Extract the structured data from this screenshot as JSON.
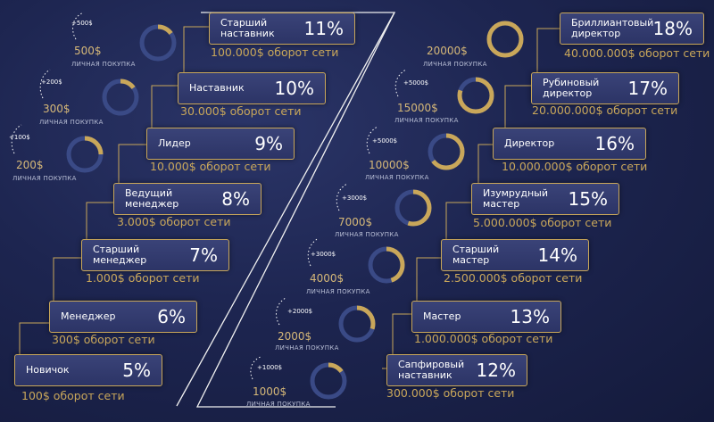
{
  "levels": [
    {
      "name": "Новичок",
      "percent": "5%",
      "turnover": "100$ оборот сети"
    },
    {
      "name": "Менеджер",
      "percent": "6%",
      "turnover": "300$ оборот сети"
    },
    {
      "name": "Старший\nменеджер",
      "percent": "7%",
      "turnover": "1.000$ оборот сети"
    },
    {
      "name": "Ведущий\nменеджер",
      "percent": "8%",
      "turnover": "3.000$ оборот сети"
    },
    {
      "name": "Лидер",
      "percent": "9%",
      "turnover": "10.000$ оборот сети"
    },
    {
      "name": "Наставник",
      "percent": "10%",
      "turnover": "30.000$ оборот сети"
    },
    {
      "name": "Старший\nнаставник",
      "percent": "11%",
      "turnover": "100.000$ оборот сети"
    },
    {
      "name": "Сапфировый\nнаставник",
      "percent": "12%",
      "turnover": "300.000$ оборот сети"
    },
    {
      "name": "Мастер",
      "percent": "13%",
      "turnover": "1.000.000$ оборот сети"
    },
    {
      "name": "Старший\nмастер",
      "percent": "14%",
      "turnover": "2.500.000$ оборот сети"
    },
    {
      "name": "Изумрудный\nмастер",
      "percent": "15%",
      "turnover": "5.000.000$ оборот сети"
    },
    {
      "name": "Директор",
      "percent": "16%",
      "turnover": "10.000.000$ оборот сети"
    },
    {
      "name": "Рубиновый\nдиректор",
      "percent": "17%",
      "turnover": "20.000.000$ оборот сети"
    },
    {
      "name": "Бриллиантовый\nдиректор",
      "percent": "18%",
      "turnover": "40.000.000$ оборот сети"
    }
  ],
  "purchases": [
    {
      "amount": "200$",
      "label": "ЛИЧНАЯ ПОКУПКА",
      "bonus": "+100$",
      "fill": 0.25
    },
    {
      "amount": "300$",
      "label": "ЛИЧНАЯ ПОКУПКА",
      "bonus": "+200$",
      "fill": 0.15
    },
    {
      "amount": "500$",
      "label": "ЛИЧНАЯ ПОКУПКА",
      "bonus": "+500$",
      "fill": 0.15
    },
    {
      "amount": "1000$",
      "label": "ЛИЧНАЯ ПОКУПКА",
      "bonus": "+1000$",
      "fill": 0.15
    },
    {
      "amount": "2000$",
      "label": "ЛИЧНАЯ ПОКУПКА",
      "bonus": "+2000$",
      "fill": 0.3
    },
    {
      "amount": "4000$",
      "label": "ЛИЧНАЯ ПОКУПКА",
      "bonus": "+3000$",
      "fill": 0.45
    },
    {
      "amount": "7000$",
      "label": "ЛИЧНАЯ ПОКУПКА",
      "bonus": "+3000$",
      "fill": 0.55
    },
    {
      "amount": "10000$",
      "label": "ЛИЧНАЯ ПОКУПКА",
      "bonus": "+5000$",
      "fill": 0.65
    },
    {
      "amount": "15000$",
      "label": "ЛИЧНАЯ ПОКУПКА",
      "bonus": "+5000$",
      "fill": 0.8
    },
    {
      "amount": "20000$",
      "label": "ЛИЧНАЯ ПОКУПКА",
      "bonus": "",
      "fill": 1.0
    }
  ],
  "colors": {
    "gold": "#c9a75a",
    "ring": "#3a4a86"
  }
}
